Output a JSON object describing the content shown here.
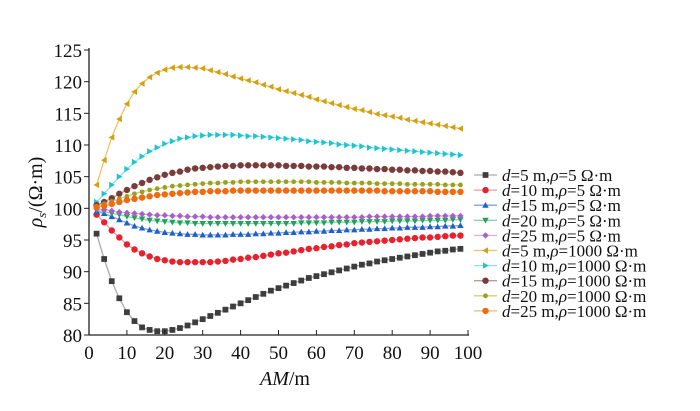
{
  "chart_data": {
    "type": "line",
    "title": "",
    "xlabel": "AM/m",
    "xlabel_italic": "AM",
    "xlabel_unit": "/m",
    "ylabel": "ρs/(Ω·m)",
    "ylabel_symbol": "ρ",
    "ylabel_sub": "s",
    "ylabel_unit": "/(Ω·m)",
    "xlim": [
      0,
      100
    ],
    "ylim": [
      80,
      125
    ],
    "x_ticks": [
      "0",
      "10",
      "20",
      "30",
      "40",
      "50",
      "60",
      "70",
      "80",
      "90",
      "100"
    ],
    "y_ticks": [
      "80",
      "85",
      "90",
      "95",
      "100",
      "105",
      "110",
      "115",
      "120",
      "125"
    ],
    "x_start": 2,
    "x_step": 2,
    "grid": false,
    "legend_placement": "right",
    "series": [
      {
        "name": "d=5 m,ρ=5 Ω·m",
        "d": "5",
        "rho": "5",
        "color": "#3d3d3d",
        "line": "#aaaaaa",
        "marker": "square",
        "values": [
          96,
          92,
          88.5,
          85.8,
          83.6,
          82.2,
          81.2,
          80.8,
          80.6,
          80.6,
          80.8,
          81.1,
          81.5,
          82,
          82.5,
          83,
          83.5,
          84,
          84.5,
          85,
          85.5,
          86,
          86.5,
          87,
          87.4,
          87.8,
          88.2,
          88.6,
          89,
          89.3,
          89.6,
          89.9,
          90.2,
          90.5,
          90.8,
          91.1,
          91.3,
          91.6,
          91.8,
          92,
          92.2,
          92.4,
          92.6,
          92.8,
          93,
          93.2,
          93.3,
          93.5,
          93.6
        ]
      },
      {
        "name": "d=10 m,ρ=5 Ω·m",
        "d": "10",
        "rho": "5",
        "color": "#e8212f",
        "line": "#f59a9a",
        "marker": "circle",
        "values": [
          99,
          97.8,
          96.5,
          95.4,
          94.3,
          93.5,
          92.9,
          92.4,
          92,
          91.8,
          91.6,
          91.5,
          91.5,
          91.5,
          91.5,
          91.5,
          91.6,
          91.7,
          91.9,
          92,
          92.2,
          92.3,
          92.5,
          92.7,
          92.9,
          93,
          93.2,
          93.4,
          93.6,
          93.7,
          93.9,
          94,
          94.2,
          94.3,
          94.5,
          94.6,
          94.7,
          94.8,
          94.9,
          95,
          95.1,
          95.2,
          95.3,
          95.4,
          95.4,
          95.5,
          95.6,
          95.7,
          95.7
        ]
      },
      {
        "name": "d=15 m,ρ=5 Ω·m",
        "d": "15",
        "rho": "5",
        "color": "#1f5fc8",
        "line": "#7fa4e0",
        "marker": "triangle-up",
        "values": [
          99.5,
          99.2,
          98.7,
          98.2,
          97.7,
          97.2,
          96.9,
          96.6,
          96.4,
          96.2,
          96.1,
          96,
          95.9,
          95.9,
          95.8,
          95.8,
          95.8,
          95.8,
          95.9,
          95.9,
          95.9,
          96,
          96,
          96.1,
          96.1,
          96.2,
          96.2,
          96.3,
          96.3,
          96.4,
          96.4,
          96.5,
          96.5,
          96.6,
          96.6,
          96.7,
          96.7,
          96.8,
          96.8,
          96.9,
          96.9,
          97,
          97,
          97,
          97.1,
          97.1,
          97.2,
          97.2,
          97.3
        ]
      },
      {
        "name": "d=20 m,ρ=5 Ω·m",
        "d": "20",
        "rho": "5",
        "color": "#1ea35a",
        "line": "#8fd3a9",
        "marker": "triangle-down",
        "values": [
          99.7,
          99.5,
          99.2,
          99,
          98.7,
          98.5,
          98.3,
          98.1,
          98,
          97.9,
          97.8,
          97.7,
          97.7,
          97.6,
          97.6,
          97.6,
          97.6,
          97.6,
          97.6,
          97.6,
          97.6,
          97.6,
          97.6,
          97.6,
          97.6,
          97.6,
          97.6,
          97.7,
          97.7,
          97.7,
          97.7,
          97.8,
          97.8,
          97.8,
          97.8,
          97.9,
          97.9,
          97.9,
          97.9,
          98,
          98,
          98,
          98,
          98.1,
          98.1,
          98.1,
          98.1,
          98.2,
          98.2
        ]
      },
      {
        "name": "d=25 m,ρ=5 Ω·m",
        "d": "25",
        "rho": "5",
        "color": "#a860c8",
        "line": "#d5b3e4",
        "marker": "diamond",
        "values": [
          99.9,
          99.8,
          99.6,
          99.4,
          99.3,
          99.2,
          99.1,
          99,
          98.9,
          98.9,
          98.8,
          98.8,
          98.7,
          98.7,
          98.7,
          98.6,
          98.6,
          98.6,
          98.6,
          98.6,
          98.6,
          98.6,
          98.6,
          98.6,
          98.6,
          98.6,
          98.6,
          98.6,
          98.6,
          98.6,
          98.6,
          98.6,
          98.6,
          98.6,
          98.6,
          98.6,
          98.7,
          98.7,
          98.7,
          98.7,
          98.7,
          98.7,
          98.7,
          98.7,
          98.8,
          98.8,
          98.8,
          98.8,
          98.8
        ]
      },
      {
        "name": "d=5 m,ρ=1000 Ω·m",
        "d": "5",
        "rho": "1000",
        "color": "#d4a010",
        "line": "#e6c566",
        "marker": "triangle-left",
        "values": [
          103.7,
          107.6,
          111.2,
          114.1,
          116.5,
          118.4,
          119.7,
          120.7,
          121.4,
          121.9,
          122.2,
          122.3,
          122.3,
          122.2,
          122.1,
          121.8,
          121.5,
          121.2,
          120.8,
          120.5,
          120.2,
          119.9,
          119.5,
          119.2,
          118.8,
          118.5,
          118.2,
          117.9,
          117.6,
          117.2,
          116.9,
          116.6,
          116.3,
          116,
          115.7,
          115.5,
          115.2,
          114.9,
          114.7,
          114.5,
          114.3,
          114,
          113.8,
          113.6,
          113.4,
          113.2,
          113,
          112.8,
          112.6
        ]
      },
      {
        "name": "d=10 m,ρ=1000 Ω·m",
        "d": "10",
        "rho": "1000",
        "color": "#1fc4d0",
        "line": "#8fe0e6",
        "marker": "triangle-right",
        "values": [
          101,
          102.3,
          103.7,
          105,
          106.2,
          107.3,
          108.2,
          109,
          109.6,
          110.2,
          110.6,
          111,
          111.2,
          111.4,
          111.5,
          111.6,
          111.6,
          111.6,
          111.6,
          111.5,
          111.4,
          111.4,
          111.3,
          111.2,
          111.1,
          111,
          110.9,
          110.8,
          110.6,
          110.5,
          110.4,
          110.3,
          110.1,
          110,
          109.9,
          109.8,
          109.6,
          109.5,
          109.4,
          109.3,
          109.2,
          109.1,
          109,
          108.9,
          108.8,
          108.7,
          108.6,
          108.5,
          108.4
        ]
      },
      {
        "name": "d=15 m,ρ=1000 Ω·m",
        "d": "15",
        "rho": "1000",
        "color": "#7a3b3b",
        "line": "#c09a9a",
        "marker": "circle",
        "values": [
          100.5,
          101,
          101.6,
          102.3,
          102.9,
          103.5,
          104,
          104.5,
          104.9,
          105.3,
          105.6,
          105.8,
          106.1,
          106.3,
          106.4,
          106.5,
          106.6,
          106.7,
          106.7,
          106.8,
          106.8,
          106.8,
          106.8,
          106.8,
          106.8,
          106.7,
          106.7,
          106.7,
          106.6,
          106.6,
          106.6,
          106.5,
          106.5,
          106.4,
          106.4,
          106.3,
          106.3,
          106.2,
          106.2,
          106.1,
          106.1,
          106,
          106,
          105.9,
          105.9,
          105.8,
          105.8,
          105.7,
          105.6
        ]
      },
      {
        "name": "d=20 m,ρ=1000 Ω·m",
        "d": "20",
        "rho": "1000",
        "color": "#9aa020",
        "line": "#ccd080",
        "marker": "star",
        "values": [
          100.3,
          100.7,
          101.1,
          101.5,
          101.9,
          102.3,
          102.6,
          102.9,
          103.1,
          103.3,
          103.5,
          103.6,
          103.7,
          103.8,
          103.9,
          104,
          104,
          104.1,
          104.1,
          104.2,
          104.2,
          104.2,
          104.2,
          104.2,
          104.2,
          104.2,
          104.2,
          104.2,
          104.2,
          104.1,
          104.1,
          104.1,
          104.1,
          104,
          104,
          104,
          104,
          103.9,
          103.9,
          103.9,
          103.9,
          103.8,
          103.8,
          103.8,
          103.8,
          103.8,
          103.7,
          103.7,
          103.7
        ]
      },
      {
        "name": "d=25 m,ρ=1000 Ω·m",
        "d": "25",
        "rho": "1000",
        "color": "#f26a10",
        "line": "#f8b080",
        "marker": "circle",
        "values": [
          100.2,
          100.4,
          100.7,
          101,
          101.3,
          101.5,
          101.7,
          101.9,
          102.1,
          102.2,
          102.3,
          102.4,
          102.5,
          102.6,
          102.6,
          102.7,
          102.7,
          102.7,
          102.8,
          102.8,
          102.8,
          102.8,
          102.8,
          102.8,
          102.8,
          102.8,
          102.8,
          102.8,
          102.8,
          102.8,
          102.8,
          102.8,
          102.8,
          102.8,
          102.8,
          102.8,
          102.8,
          102.8,
          102.7,
          102.7,
          102.7,
          102.7,
          102.7,
          102.7,
          102.7,
          102.6,
          102.6,
          102.6,
          102.6
        ]
      }
    ]
  }
}
